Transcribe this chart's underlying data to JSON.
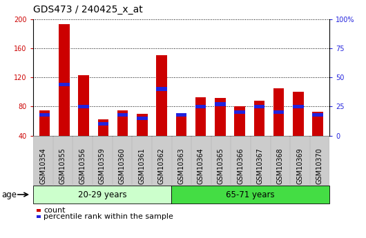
{
  "title": "GDS473 / 240425_x_at",
  "categories": [
    "GSM10354",
    "GSM10355",
    "GSM10356",
    "GSM10359",
    "GSM10360",
    "GSM10361",
    "GSM10362",
    "GSM10363",
    "GSM10364",
    "GSM10365",
    "GSM10366",
    "GSM10367",
    "GSM10368",
    "GSM10369",
    "GSM10370"
  ],
  "count_values": [
    75,
    193,
    123,
    62,
    75,
    70,
    150,
    70,
    93,
    92,
    80,
    88,
    105,
    100,
    73
  ],
  "percentile_pct": [
    18,
    44,
    25,
    10,
    18,
    15,
    40,
    18,
    25,
    27,
    20,
    25,
    20,
    25,
    18
  ],
  "ylim_min": 40,
  "ylim_max": 200,
  "y2lim_min": 0,
  "y2lim_max": 100,
  "yticks": [
    40,
    80,
    120,
    160,
    200
  ],
  "y2ticks": [
    0,
    25,
    50,
    75,
    100
  ],
  "y2ticklabels": [
    "0",
    "25",
    "50",
    "75",
    "100%"
  ],
  "group1_label": "20-29 years",
  "group2_label": "65-71 years",
  "group1_count": 7,
  "group2_count": 8,
  "age_label": "age",
  "legend_count_label": "count",
  "legend_pct_label": "percentile rank within the sample",
  "bar_color_red": "#cc0000",
  "bar_color_blue": "#2222dd",
  "group1_bg": "#ccffcc",
  "group2_bg": "#44dd44",
  "tick_bg": "#cccccc",
  "bar_width": 0.55,
  "title_fontsize": 10,
  "tick_fontsize": 7,
  "label_fontsize": 8
}
